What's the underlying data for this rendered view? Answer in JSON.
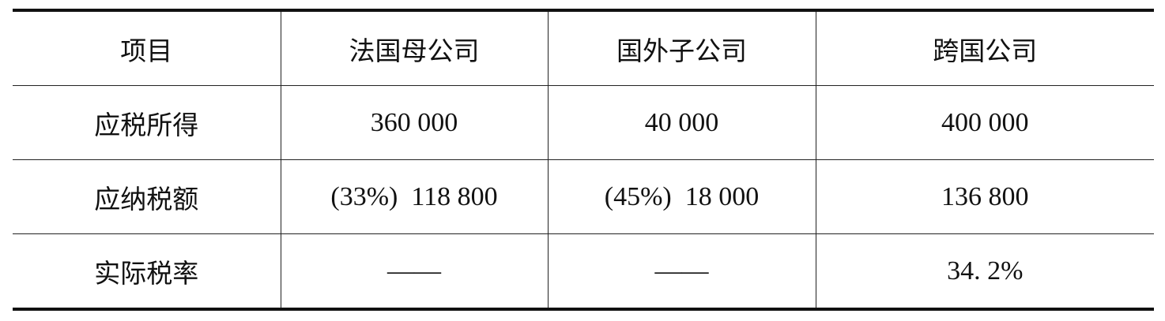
{
  "table": {
    "headers": [
      "项目",
      "法国母公司",
      "国外子公司",
      "跨国公司"
    ],
    "rows": [
      [
        "应税所得",
        "360 000",
        "40 000",
        "400 000"
      ],
      [
        "应纳税额",
        "(33%)  118 800",
        "(45%)  18 000",
        "136 800"
      ],
      [
        "实际税率",
        "——",
        "——",
        "34. 2%"
      ]
    ]
  }
}
